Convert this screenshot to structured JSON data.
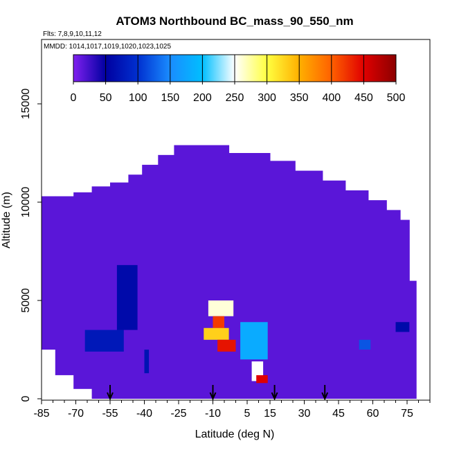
{
  "chart_data": {
    "type": "heatmap",
    "title": "ATOM3 Northbound BC_mass_90_550_nm",
    "subtitle_flights": "Flts: 7,8,9,10,11,12",
    "subtitle_dates": "MMDD: 1014,1017,1019,1020,1023,1025",
    "xlabel": "Latitude (deg N)",
    "ylabel": "Altitude (m)",
    "xlim": [
      -85,
      85
    ],
    "ylim": [
      0,
      17000
    ],
    "x_ticks": [
      -85,
      -70,
      -55,
      -40,
      -25,
      -10,
      5,
      15,
      30,
      45,
      60,
      75
    ],
    "y_ticks": [
      0,
      5000,
      10000,
      15000
    ],
    "colorbar": {
      "min": 0,
      "max": 500,
      "ticks": [
        0,
        50,
        100,
        150,
        200,
        250,
        300,
        350,
        400,
        450,
        500
      ],
      "colors": [
        "#8020f0",
        "#0000a0",
        "#0030d0",
        "#1a8cff",
        "#00bfff",
        "#ffffff",
        "#ffff40",
        "#ffb000",
        "#ff6000",
        "#e00000",
        "#8b0000"
      ]
    },
    "arrows_lat": [
      -55,
      -10,
      17,
      39
    ],
    "background_value": 15,
    "cells": [
      {
        "lat": [
          -66,
          -49
        ],
        "alt": [
          2400,
          3500
        ],
        "value": 75
      },
      {
        "lat": [
          -52,
          -43
        ],
        "alt": [
          3500,
          6800
        ],
        "value": 60
      },
      {
        "lat": [
          -40,
          -38
        ],
        "alt": [
          1300,
          2500
        ],
        "value": 70
      },
      {
        "lat": [
          -12,
          -1
        ],
        "alt": [
          4200,
          5000
        ],
        "value": 260
      },
      {
        "lat": [
          -10,
          -5
        ],
        "alt": [
          3600,
          4200
        ],
        "value": 420
      },
      {
        "lat": [
          -14,
          -3
        ],
        "alt": [
          3000,
          3600
        ],
        "value": 330
      },
      {
        "lat": [
          -8,
          0
        ],
        "alt": [
          2400,
          3000
        ],
        "value": 440
      },
      {
        "lat": [
          2,
          14
        ],
        "alt": [
          2000,
          3900
        ],
        "value": 180
      },
      {
        "lat": [
          7,
          12
        ],
        "alt": [
          900,
          1900
        ],
        "value": 250
      },
      {
        "lat": [
          9,
          14
        ],
        "alt": [
          800,
          1200
        ],
        "value": 450
      },
      {
        "lat": [
          54,
          59
        ],
        "alt": [
          2500,
          3000
        ],
        "value": 120
      },
      {
        "lat": [
          70,
          76
        ],
        "alt": [
          3400,
          3900
        ],
        "value": 60
      }
    ]
  }
}
